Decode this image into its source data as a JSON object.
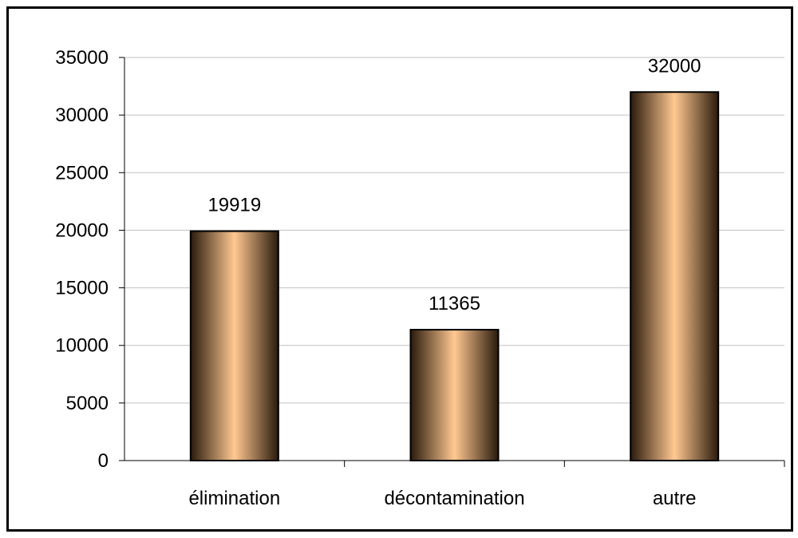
{
  "chart_data": {
    "type": "bar",
    "categories": [
      "élimination",
      "décontamination",
      "autre"
    ],
    "values": [
      19919,
      11365,
      32000
    ],
    "data_labels": [
      "19919",
      "11365",
      "32000"
    ],
    "title": "",
    "xlabel": "",
    "ylabel": "",
    "ylim": [
      0,
      35000
    ],
    "y_ticks": [
      0,
      5000,
      10000,
      15000,
      20000,
      25000,
      30000,
      35000
    ],
    "y_tick_labels": [
      "0",
      "5000",
      "10000",
      "15000",
      "20000",
      "25000",
      "30000",
      "35000"
    ],
    "grid": true,
    "legend": "none",
    "colors": {
      "bar_center": "#FFC891",
      "bar_edge": "#2A1A0C",
      "bar_outline": "#000000",
      "gridline": "#C0C0C0",
      "axis": "#000000",
      "frame": "#000000"
    }
  }
}
